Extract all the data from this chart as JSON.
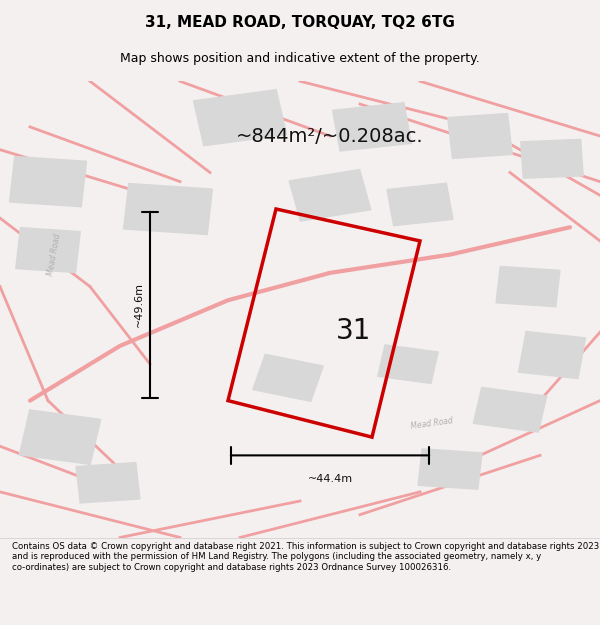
{
  "title_line1": "31, MEAD ROAD, TORQUAY, TQ2 6TG",
  "title_line2": "Map shows position and indicative extent of the property.",
  "area_text": "~844m²/~0.208ac.",
  "dim_width": "~44.4m",
  "dim_height": "~49.6m",
  "plot_number": "31",
  "footer_text": "Contains OS data © Crown copyright and database right 2021. This information is subject to Crown copyright and database rights 2023 and is reproduced with the permission of HM Land Registry. The polygons (including the associated geometry, namely x, y co-ordinates) are subject to Crown copyright and database rights 2023 Ordnance Survey 100026316.",
  "bg_color": "#f9f0f0",
  "map_bg": "#ffffff",
  "road_color": "#f0a0a0",
  "building_color": "#d8d8d8",
  "plot_outline_color": "#cc0000",
  "title_color": "#000000",
  "footer_color": "#000000",
  "dim_color": "#000000"
}
